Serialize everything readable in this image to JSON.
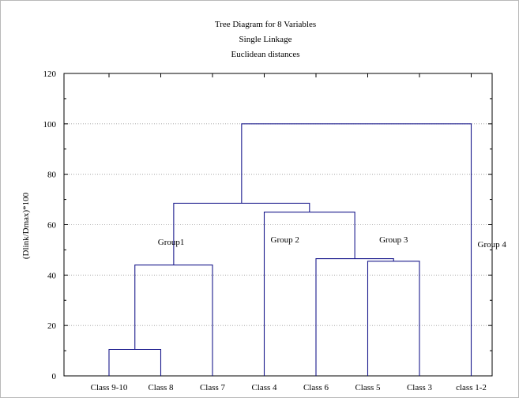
{
  "chart_data": {
    "type": "dendrogram",
    "title": "Tree Diagram for 8   Variables",
    "subtitle_1": "Single Linkage",
    "subtitle_2": "Euclidean distances",
    "ylabel": "(Dlink/Dmax)*100",
    "xlabel": "",
    "ylim": [
      0,
      120
    ],
    "yticks": [
      0,
      20,
      40,
      60,
      80,
      100,
      120
    ],
    "grid": true,
    "leaves": [
      "Class 9-10",
      "Class 8",
      "Class 7",
      "Class 4",
      "Class 6",
      "Class 5",
      "Class 3",
      "class 1-2"
    ],
    "merges": [
      {
        "left": [
          "Class 9-10"
        ],
        "right": [
          "Class 8"
        ],
        "height": 10.5
      },
      {
        "left": [
          "Class 9-10",
          "Class 8"
        ],
        "right": [
          "Class 7"
        ],
        "height": 44
      },
      {
        "left": [
          "Class 5"
        ],
        "right": [
          "Class 3"
        ],
        "height": 45.5
      },
      {
        "left": [
          "Class 6"
        ],
        "right": [
          "Class 5",
          "Class 3"
        ],
        "height": 46.5
      },
      {
        "left": [
          "Class 4"
        ],
        "right": [
          "Class 6",
          "Class 5",
          "Class 3"
        ],
        "height": 65
      },
      {
        "left": [
          "Class 9-10",
          "Class 8",
          "Class 7"
        ],
        "right": [
          "Class 4",
          "Class 6",
          "Class 5",
          "Class 3"
        ],
        "height": 68.5
      },
      {
        "left": [
          "Class 9-10",
          "Class 8",
          "Class 7",
          "Class 4",
          "Class 6",
          "Class 5",
          "Class 3"
        ],
        "right": [
          "class 1-2"
        ],
        "height": 100
      }
    ],
    "annotations": [
      {
        "text": "Group1",
        "x": 1.2,
        "y": 52
      },
      {
        "text": "Group 2",
        "x": 3.4,
        "y": 53
      },
      {
        "text": "Group 3",
        "x": 5.5,
        "y": 53
      },
      {
        "text": "Group 4",
        "x": 7.4,
        "y": 51
      }
    ],
    "colors": {
      "line": "#1a1a8c",
      "grid": "#9a9a9a",
      "axis": "#000000"
    }
  }
}
